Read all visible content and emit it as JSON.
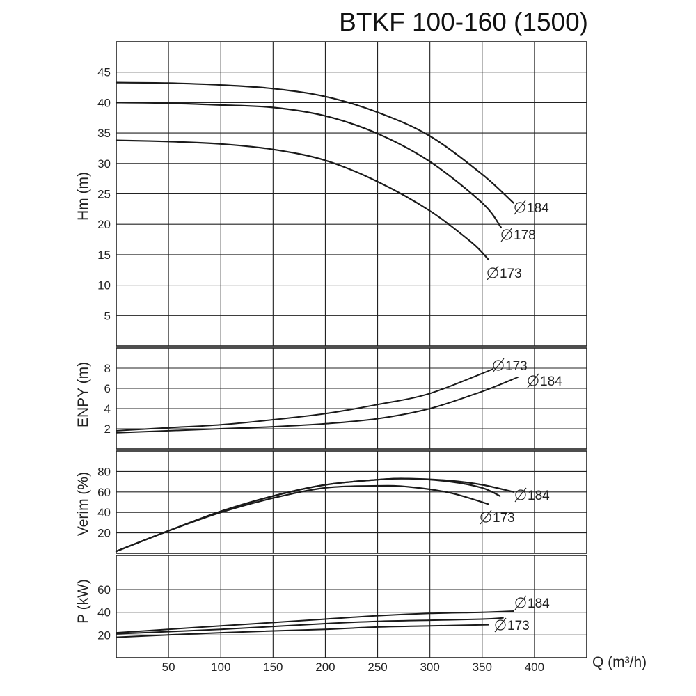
{
  "chart_data": {
    "title": "BTKF 100-160 (1500)",
    "type": "line",
    "xlabel": "Q (m³/h)",
    "xlim": [
      0,
      450
    ],
    "x_ticks": [
      50,
      100,
      150,
      200,
      250,
      300,
      350,
      400
    ],
    "panels": [
      {
        "id": "hm",
        "ylabel": "Hm (m)",
        "ylim": [
          0,
          50
        ],
        "y_ticks": [
          5,
          10,
          15,
          20,
          25,
          30,
          35,
          40,
          45
        ],
        "series": [
          {
            "name": "Ø 184",
            "x": [
              0,
              50,
              100,
              150,
              200,
              250,
              300,
              350,
              380
            ],
            "y": [
              43.3,
              43.2,
              42.9,
              42.3,
              41.0,
              38.4,
              34.5,
              28.2,
              23.5
            ]
          },
          {
            "name": "Ø 178",
            "x": [
              0,
              50,
              100,
              150,
              200,
              250,
              300,
              350,
              368
            ],
            "y": [
              40.0,
              39.9,
              39.6,
              39.2,
              37.8,
              34.9,
              30.3,
              23.5,
              19.5
            ]
          },
          {
            "name": "Ø 173",
            "x": [
              0,
              50,
              100,
              150,
              200,
              250,
              300,
              340,
              356
            ],
            "y": [
              33.8,
              33.6,
              33.2,
              32.3,
              30.5,
              27.0,
              22.2,
              17.0,
              14.2
            ]
          }
        ]
      },
      {
        "id": "enpy",
        "ylabel": "ENPY (m)",
        "ylim": [
          0,
          10
        ],
        "y_ticks": [
          2,
          4,
          6,
          8
        ],
        "series": [
          {
            "name": "Ø 173",
            "x": [
              0,
              50,
              100,
              150,
              200,
              250,
              300,
              360
            ],
            "y": [
              1.8,
              2.1,
              2.4,
              2.9,
              3.5,
              4.4,
              5.5,
              7.9
            ]
          },
          {
            "name": "Ø 184",
            "x": [
              0,
              50,
              100,
              150,
              200,
              250,
              300,
              350,
              384
            ],
            "y": [
              1.6,
              1.8,
              2.0,
              2.2,
              2.5,
              3.0,
              4.0,
              5.7,
              7.1
            ]
          }
        ]
      },
      {
        "id": "verim",
        "ylabel": "Verim (%)",
        "ylim": [
          0,
          100
        ],
        "y_ticks": [
          20,
          40,
          60,
          80
        ],
        "series": [
          {
            "name": "Ø 184",
            "x": [
              0,
              50,
              100,
              150,
              200,
              250,
              280,
              320,
              350,
              380
            ],
            "y": [
              2,
              22,
              41,
              56,
              67,
              72,
              73,
              71,
              67,
              60
            ]
          },
          {
            "name": "Ø 178",
            "x": [
              0,
              50,
              100,
              150,
              200,
              250,
              280,
              320,
              350,
              367
            ],
            "y": [
              2,
              22,
              41,
              56,
              67,
              72,
              73,
              70,
              64,
              56
            ]
          },
          {
            "name": "Ø 173",
            "x": [
              0,
              50,
              100,
              150,
              200,
              250,
              280,
              320,
              356
            ],
            "y": [
              2,
              22,
              40,
              54,
              64,
              66,
              65,
              59,
              48
            ]
          }
        ]
      },
      {
        "id": "power",
        "ylabel": "P (kW)",
        "ylim": [
          0,
          90
        ],
        "y_ticks": [
          20,
          40,
          60
        ],
        "series": [
          {
            "name": "Ø 184",
            "x": [
              0,
              100,
              200,
              250,
              300,
              350,
              380
            ],
            "y": [
              22,
              28,
              34,
              37,
              39,
              40,
              41
            ]
          },
          {
            "name": "Ø 178",
            "x": [
              0,
              100,
              200,
              250,
              300,
              350,
              370
            ],
            "y": [
              21,
              25,
              30,
              32,
              33,
              34,
              35
            ]
          },
          {
            "name": "Ø 173",
            "x": [
              0,
              100,
              200,
              250,
              300,
              356
            ],
            "y": [
              18,
              22,
              25,
              27,
              28,
              29
            ]
          }
        ]
      }
    ]
  },
  "curve_labels": [
    {
      "panel": "hm",
      "text": "184"
    },
    {
      "panel": "hm",
      "text": "178"
    },
    {
      "panel": "hm",
      "text": "173"
    },
    {
      "panel": "enpy",
      "text": "173"
    },
    {
      "panel": "enpy",
      "text": "184"
    },
    {
      "panel": "verim",
      "text": "184"
    },
    {
      "panel": "verim",
      "text": "173"
    },
    {
      "panel": "power",
      "text": "184"
    },
    {
      "panel": "power",
      "text": "173"
    }
  ]
}
